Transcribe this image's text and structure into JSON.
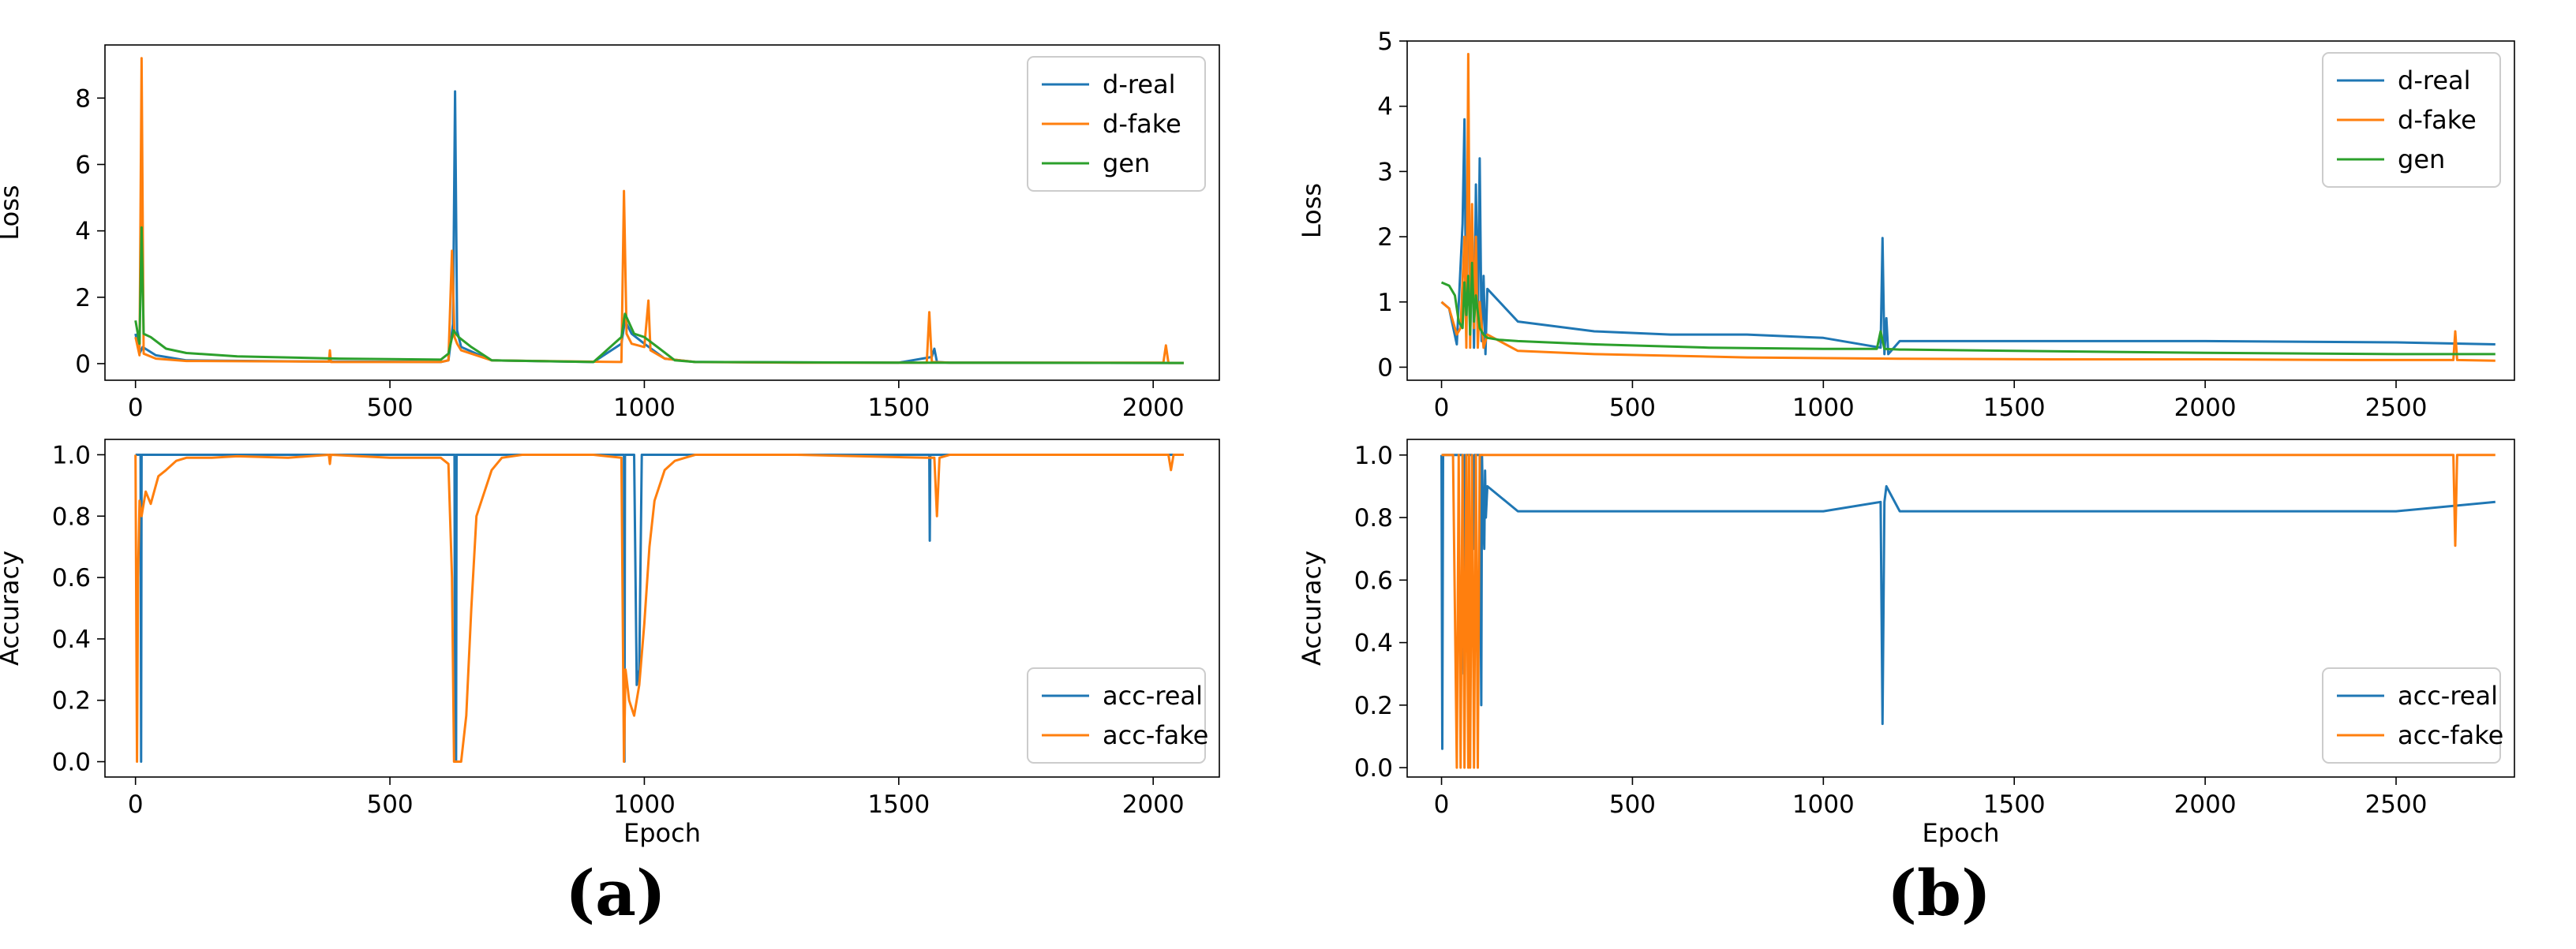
{
  "panels": {
    "a": {
      "label": "(a)"
    },
    "b": {
      "label": "(b)"
    }
  },
  "colors": {
    "blue": "#1f77b4",
    "orange": "#ff7f0e",
    "green": "#2ca02c"
  },
  "chart_data": [
    {
      "id": "a-loss",
      "panel": "a",
      "type": "line",
      "xlabel": "",
      "ylabel": "Loss",
      "xlim": [
        -60,
        2130
      ],
      "ylim": [
        -0.5,
        9.6
      ],
      "xticks": [
        0,
        500,
        1000,
        1500,
        2000
      ],
      "yticks": [
        0,
        2,
        4,
        6,
        8
      ],
      "legend_position": "top-right",
      "series": [
        {
          "name": "d-real",
          "color": "#1f77b4",
          "x": [
            0,
            8,
            14,
            40,
            100,
            300,
            600,
            615,
            624,
            628,
            632,
            640,
            700,
            900,
            955,
            962,
            975,
            1000,
            1040,
            1100,
            1500,
            1565,
            1570,
            1575,
            1600,
            2060
          ],
          "y": [
            0.9,
            0.3,
            0.5,
            0.25,
            0.1,
            0.07,
            0.05,
            0.1,
            1.2,
            8.2,
            1.0,
            0.5,
            0.1,
            0.05,
            0.6,
            1.3,
            0.9,
            0.6,
            0.15,
            0.05,
            0.03,
            0.2,
            0.45,
            0.05,
            0.03,
            0.02
          ]
        },
        {
          "name": "d-fake",
          "color": "#ff7f0e",
          "x": [
            0,
            8,
            12,
            16,
            40,
            100,
            380,
            382,
            384,
            600,
            615,
            622,
            627,
            632,
            640,
            700,
            955,
            960,
            965,
            975,
            1000,
            1008,
            1012,
            1040,
            1100,
            1300,
            1555,
            1560,
            1565,
            1600,
            2020,
            2025,
            2030,
            2060
          ],
          "y": [
            0.8,
            0.25,
            9.2,
            0.3,
            0.15,
            0.08,
            0.06,
            0.4,
            0.05,
            0.05,
            0.1,
            3.4,
            0.8,
            0.6,
            0.4,
            0.1,
            0.05,
            5.2,
            0.9,
            0.6,
            0.5,
            1.9,
            0.4,
            0.15,
            0.05,
            0.03,
            0.03,
            1.55,
            0.05,
            0.03,
            0.03,
            0.55,
            0.02,
            0.02
          ]
        },
        {
          "name": "gen",
          "color": "#2ca02c",
          "x": [
            0,
            8,
            12,
            16,
            30,
            60,
            100,
            200,
            400,
            600,
            615,
            625,
            635,
            660,
            700,
            900,
            955,
            962,
            980,
            1000,
            1030,
            1060,
            1100,
            1500,
            2060
          ],
          "y": [
            1.3,
            0.6,
            4.1,
            0.9,
            0.8,
            0.45,
            0.32,
            0.22,
            0.15,
            0.12,
            0.3,
            1.0,
            0.8,
            0.5,
            0.1,
            0.05,
            0.8,
            1.5,
            0.9,
            0.8,
            0.45,
            0.1,
            0.05,
            0.03,
            0.02
          ]
        }
      ]
    },
    {
      "id": "a-accuracy",
      "panel": "a",
      "type": "line",
      "xlabel": "Epoch",
      "ylabel": "Accuracy",
      "xlim": [
        -60,
        2130
      ],
      "ylim": [
        -0.05,
        1.05
      ],
      "xticks": [
        0,
        500,
        1000,
        1500,
        2000
      ],
      "yticks": [
        0.0,
        0.2,
        0.4,
        0.6,
        0.8,
        1.0
      ],
      "legend_position": "bottom-right",
      "series": [
        {
          "name": "acc-real",
          "color": "#1f77b4",
          "x": [
            0,
            10,
            11,
            12,
            13,
            620,
            627,
            628,
            629,
            630,
            631,
            640,
            955,
            960,
            961,
            962,
            963,
            980,
            985,
            990,
            995,
            1000,
            1020,
            1555,
            1560,
            1561,
            1562,
            1563,
            2060
          ],
          "y": [
            1.0,
            1.0,
            0.0,
            1.0,
            1.0,
            1.0,
            1.0,
            0.0,
            1.0,
            0.0,
            1.0,
            1.0,
            1.0,
            1.0,
            0.0,
            1.0,
            1.0,
            1.0,
            0.25,
            0.3,
            1.0,
            1.0,
            1.0,
            1.0,
            1.0,
            0.72,
            1.0,
            1.0,
            1.0
          ]
        },
        {
          "name": "acc-fake",
          "color": "#ff7f0e",
          "x": [
            0,
            3,
            5,
            8,
            12,
            20,
            30,
            45,
            60,
            80,
            100,
            150,
            200,
            300,
            380,
            382,
            384,
            500,
            600,
            615,
            622,
            626,
            630,
            640,
            650,
            660,
            670,
            680,
            700,
            720,
            760,
            900,
            955,
            960,
            963,
            970,
            980,
            990,
            1000,
            1010,
            1020,
            1040,
            1060,
            1080,
            1100,
            1300,
            1555,
            1570,
            1575,
            1580,
            1600,
            2000,
            2030,
            2035,
            2040,
            2060
          ],
          "y": [
            1.0,
            0.0,
            0.6,
            0.85,
            0.8,
            0.88,
            0.84,
            0.93,
            0.95,
            0.98,
            0.99,
            0.99,
            0.995,
            0.99,
            1.0,
            0.97,
            1.0,
            0.99,
            0.99,
            0.97,
            0.6,
            0.0,
            0.0,
            0.0,
            0.15,
            0.5,
            0.8,
            0.85,
            0.95,
            0.99,
            1.0,
            1.0,
            0.99,
            0.0,
            0.3,
            0.2,
            0.15,
            0.25,
            0.45,
            0.7,
            0.85,
            0.95,
            0.98,
            0.99,
            1.0,
            1.0,
            0.99,
            0.99,
            0.8,
            0.99,
            1.0,
            1.0,
            1.0,
            0.95,
            1.0,
            1.0
          ]
        }
      ]
    },
    {
      "id": "b-loss",
      "panel": "b",
      "type": "line",
      "xlabel": "",
      "ylabel": "Loss",
      "xlim": [
        -90,
        2810
      ],
      "ylim": [
        -0.2,
        5.0
      ],
      "xticks": [
        0,
        500,
        1000,
        1500,
        2000,
        2500
      ],
      "yticks": [
        0,
        1,
        2,
        3,
        4,
        5
      ],
      "legend_position": "top-right",
      "series": [
        {
          "name": "d-real",
          "color": "#1f77b4",
          "x": [
            0,
            20,
            40,
            55,
            60,
            65,
            70,
            75,
            80,
            85,
            90,
            95,
            100,
            105,
            110,
            115,
            120,
            200,
            400,
            600,
            800,
            1000,
            1150,
            1155,
            1160,
            1165,
            1170,
            1200,
            1500,
            2000,
            2500,
            2760
          ],
          "y": [
            1.0,
            0.9,
            0.35,
            2.2,
            3.8,
            0.4,
            4.1,
            0.5,
            2.3,
            0.3,
            2.8,
            0.6,
            3.2,
            0.4,
            1.4,
            0.2,
            1.2,
            0.7,
            0.55,
            0.5,
            0.5,
            0.45,
            0.3,
            1.98,
            0.2,
            0.75,
            0.2,
            0.4,
            0.4,
            0.4,
            0.38,
            0.35
          ]
        },
        {
          "name": "d-fake",
          "color": "#ff7f0e",
          "x": [
            0,
            20,
            40,
            50,
            60,
            65,
            70,
            75,
            80,
            85,
            90,
            95,
            100,
            110,
            120,
            200,
            400,
            800,
            1200,
            1600,
            2000,
            2400,
            2650,
            2655,
            2660,
            2760
          ],
          "y": [
            1.0,
            0.9,
            0.5,
            0.6,
            2.0,
            0.3,
            4.8,
            0.3,
            2.5,
            0.6,
            2.0,
            0.3,
            1.0,
            0.3,
            0.5,
            0.25,
            0.2,
            0.15,
            0.13,
            0.12,
            0.12,
            0.11,
            0.11,
            0.55,
            0.11,
            0.1
          ]
        },
        {
          "name": "gen",
          "color": "#2ca02c",
          "x": [
            0,
            20,
            35,
            45,
            55,
            60,
            65,
            70,
            75,
            80,
            85,
            90,
            100,
            110,
            120,
            150,
            200,
            400,
            700,
            1000,
            1140,
            1150,
            1160,
            1200,
            1500,
            2000,
            2500,
            2760
          ],
          "y": [
            1.3,
            1.25,
            1.1,
            0.7,
            0.6,
            1.3,
            0.8,
            1.4,
            0.5,
            1.6,
            0.7,
            1.1,
            0.6,
            0.5,
            0.45,
            0.42,
            0.4,
            0.35,
            0.3,
            0.28,
            0.28,
            0.55,
            0.28,
            0.27,
            0.25,
            0.22,
            0.2,
            0.2
          ]
        }
      ]
    },
    {
      "id": "b-accuracy",
      "panel": "b",
      "type": "line",
      "xlabel": "Epoch",
      "ylabel": "Accuracy",
      "xlim": [
        -90,
        2810
      ],
      "ylim": [
        -0.03,
        1.05
      ],
      "xticks": [
        0,
        500,
        1000,
        1500,
        2000,
        2500
      ],
      "yticks": [
        0.0,
        0.2,
        0.4,
        0.6,
        0.8,
        1.0
      ],
      "legend_position": "bottom-right",
      "series": [
        {
          "name": "acc-real",
          "color": "#1f77b4",
          "x": [
            0,
            2,
            4,
            6,
            55,
            58,
            60,
            62,
            64,
            80,
            84,
            86,
            88,
            100,
            104,
            106,
            108,
            112,
            114,
            116,
            120,
            200,
            400,
            600,
            800,
            1000,
            1150,
            1155,
            1160,
            1165,
            1200,
            1500,
            2000,
            2500,
            2760
          ],
          "y": [
            1.0,
            0.06,
            1.0,
            1.0,
            1.0,
            0.3,
            1.0,
            0.5,
            1.0,
            1.0,
            0.7,
            1.0,
            1.0,
            1.0,
            0.2,
            1.0,
            0.85,
            0.7,
            0.95,
            0.8,
            0.9,
            0.82,
            0.82,
            0.82,
            0.82,
            0.82,
            0.85,
            0.14,
            0.85,
            0.9,
            0.82,
            0.82,
            0.82,
            0.82,
            0.85
          ]
        },
        {
          "name": "acc-fake",
          "color": "#ff7f0e",
          "x": [
            0,
            30,
            40,
            45,
            50,
            55,
            60,
            65,
            70,
            72,
            75,
            80,
            85,
            90,
            95,
            100,
            110,
            200,
            1000,
            2000,
            2650,
            2655,
            2660,
            2760
          ],
          "y": [
            1.0,
            1.0,
            0.0,
            1.0,
            0.0,
            1.0,
            0.0,
            1.0,
            0.0,
            1.0,
            0.0,
            1.0,
            0.0,
            1.0,
            0.0,
            1.0,
            1.0,
            1.0,
            1.0,
            1.0,
            1.0,
            0.71,
            1.0,
            1.0
          ]
        }
      ]
    }
  ]
}
